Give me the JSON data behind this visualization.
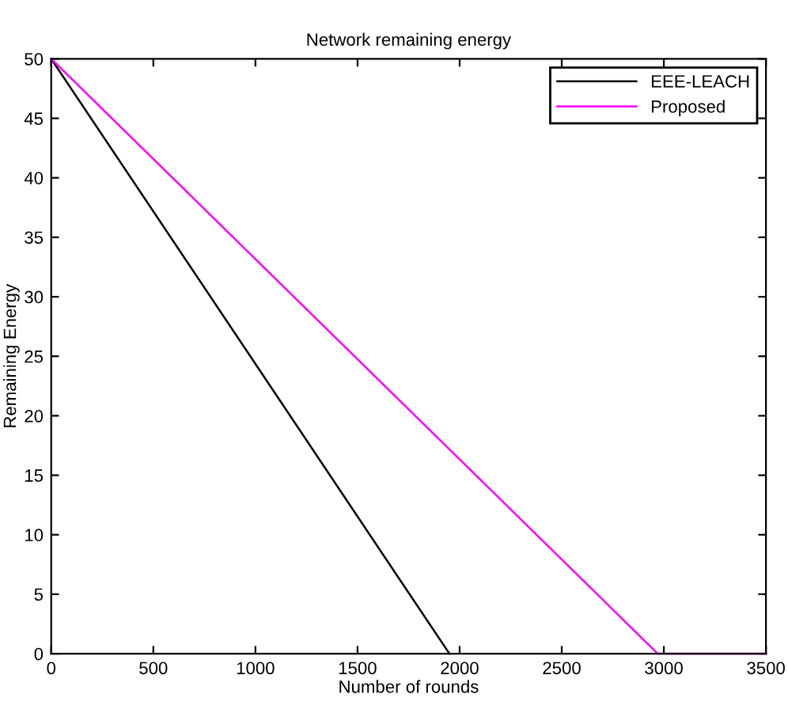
{
  "chart_data": {
    "type": "line",
    "title": "Network remaining energy",
    "xlabel": "Number of rounds",
    "ylabel": "Remaining Energy",
    "series": [
      {
        "name": "EEE-LEACH",
        "color": "#000000",
        "x": [
          0,
          1950
        ],
        "values": [
          50,
          0
        ]
      },
      {
        "name": "Proposed",
        "color": "#ff00ff",
        "x": [
          0,
          2970,
          3500
        ],
        "values": [
          50,
          0,
          0
        ]
      }
    ],
    "xlim": [
      0,
      3500
    ],
    "xticks": [
      0,
      500,
      1000,
      1500,
      2000,
      2500,
      3000,
      3500
    ],
    "ylim": [
      0,
      50
    ],
    "yticks": [
      0,
      5,
      10,
      15,
      20,
      25,
      30,
      35,
      40,
      45,
      50
    ],
    "legend": "top right",
    "grid": false,
    "line_style": "solid",
    "marker": "none"
  }
}
